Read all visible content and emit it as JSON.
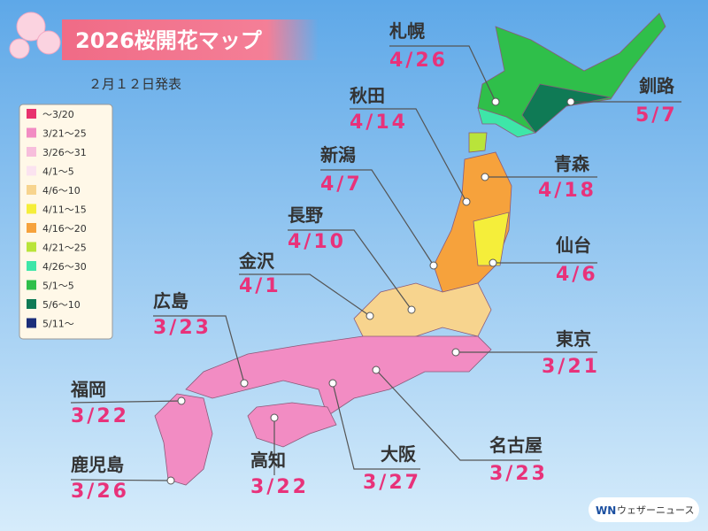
{
  "header": {
    "title": "2026桜開花マップ",
    "date": "２月１２日発表"
  },
  "legend": [
    {
      "label": "～3/20",
      "color": "#e8326e"
    },
    {
      "label": "3/21～25",
      "color": "#f28cc3"
    },
    {
      "label": "3/26～31",
      "color": "#f7bedc"
    },
    {
      "label": "4/1～5",
      "color": "#fbe3f0"
    },
    {
      "label": "4/6～10",
      "color": "#f7d48e"
    },
    {
      "label": "4/11～15",
      "color": "#f5ee3a"
    },
    {
      "label": "4/16～20",
      "color": "#f6a23c"
    },
    {
      "label": "4/21～25",
      "color": "#b9e43a"
    },
    {
      "label": "4/26～30",
      "color": "#3ee6a8"
    },
    {
      "label": "5/1～5",
      "color": "#2fbf4a"
    },
    {
      "label": "5/6～10",
      "color": "#0f7a55"
    },
    {
      "label": "5/11～",
      "color": "#1b2f7a"
    }
  ],
  "cities": [
    {
      "name": "札幌",
      "date": "4/26"
    },
    {
      "name": "釧路",
      "date": "5/7"
    },
    {
      "name": "秋田",
      "date": "4/14"
    },
    {
      "name": "新潟",
      "date": "4/7"
    },
    {
      "name": "青森",
      "date": "4/18"
    },
    {
      "name": "長野",
      "date": "4/10"
    },
    {
      "name": "仙台",
      "date": "4/6"
    },
    {
      "name": "金沢",
      "date": "4/1"
    },
    {
      "name": "広島",
      "date": "3/23"
    },
    {
      "name": "東京",
      "date": "3/21"
    },
    {
      "name": "福岡",
      "date": "3/22"
    },
    {
      "name": "名古屋",
      "date": "3/23"
    },
    {
      "name": "高知",
      "date": "3/22"
    },
    {
      "name": "大阪",
      "date": "3/27"
    },
    {
      "name": "鹿児島",
      "date": "3/26"
    }
  ],
  "logo": "ウェザーニュース"
}
